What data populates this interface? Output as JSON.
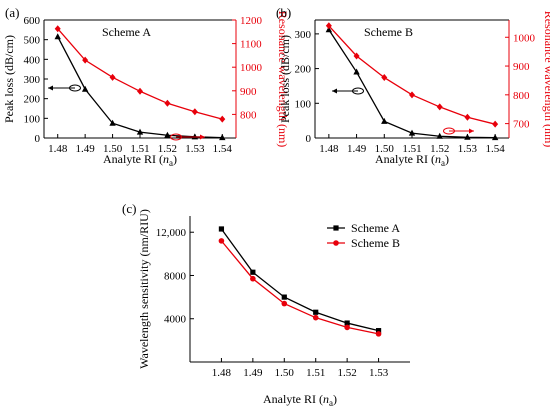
{
  "chart_data": [
    {
      "type": "line",
      "panel_label": "(a)",
      "title": "Scheme A",
      "xlabel": "Analyte RI",
      "xlabel_var": "n",
      "xlabel_sub": "a",
      "ylabel": "Peak loss (dB/cm)",
      "y2label": "Resonance wavelength (nm)",
      "x": [
        1.48,
        1.49,
        1.5,
        1.51,
        1.52,
        1.53,
        1.54
      ],
      "xlim": [
        1.475,
        1.545
      ],
      "ylim": [
        0,
        600
      ],
      "y2lim": [
        700,
        1200
      ],
      "xticks": [
        "1.48",
        "1.49",
        "1.50",
        "1.51",
        "1.52",
        "1.53",
        "1.54"
      ],
      "yticks": [
        "0",
        "100",
        "200",
        "300",
        "400",
        "500",
        "600"
      ],
      "y2ticks": [
        "800",
        "900",
        "1000",
        "1100",
        "1200"
      ],
      "series": [
        {
          "axis": "left",
          "color": "#000000",
          "marker": "triangle",
          "values": [
            515,
            248,
            75,
            30,
            14,
            6,
            2
          ]
        },
        {
          "axis": "right",
          "color": "#e8000b",
          "marker": "diamond",
          "values": [
            1163,
            1030,
            957,
            898,
            847,
            811,
            780
          ]
        }
      ]
    },
    {
      "type": "line",
      "panel_label": "(b)",
      "title": "Scheme B",
      "xlabel": "Analyte RI",
      "xlabel_var": "n",
      "xlabel_sub": "a",
      "ylabel": "Peak loss (dB/cm)",
      "y2label": "Resonance wavelength (nm)",
      "x": [
        1.48,
        1.49,
        1.5,
        1.51,
        1.52,
        1.53,
        1.54
      ],
      "xlim": [
        1.475,
        1.545
      ],
      "ylim": [
        0,
        340
      ],
      "y2lim": [
        650,
        1060
      ],
      "xticks": [
        "1.48",
        "1.49",
        "1.50",
        "1.51",
        "1.52",
        "1.53",
        "1.54"
      ],
      "yticks": [
        "0",
        "100",
        "200",
        "300"
      ],
      "y2ticks": [
        "700",
        "800",
        "900",
        "1000"
      ],
      "series": [
        {
          "axis": "left",
          "color": "#000000",
          "marker": "triangle",
          "values": [
            312,
            190,
            48,
            14,
            5,
            2,
            1
          ]
        },
        {
          "axis": "right",
          "color": "#e8000b",
          "marker": "diamond",
          "values": [
            1040,
            935,
            860,
            800,
            758,
            722,
            698
          ]
        }
      ]
    },
    {
      "type": "line",
      "panel_label": "(c)",
      "title": "",
      "xlabel": "Analyte RI",
      "xlabel_var": "n",
      "xlabel_sub": "a",
      "ylabel": "Wavelength sensitivity (nm/RIU)",
      "x": [
        1.48,
        1.49,
        1.5,
        1.51,
        1.52,
        1.53
      ],
      "xlim": [
        1.47,
        1.54
      ],
      "ylim": [
        0,
        13500
      ],
      "xticks": [
        "1.48",
        "1.49",
        "1.50",
        "1.51",
        "1.52",
        "1.53"
      ],
      "yticks": [
        "4000",
        "8000",
        "12,000"
      ],
      "ytick_values": [
        4000,
        8000,
        12000
      ],
      "legend_position": "top-right",
      "series": [
        {
          "name": "Scheme A",
          "color": "#000000",
          "marker": "square",
          "values": [
            12300,
            8300,
            6000,
            4600,
            3600,
            2900
          ]
        },
        {
          "name": "Scheme B",
          "color": "#e8000b",
          "marker": "circle",
          "values": [
            11200,
            7700,
            5400,
            4100,
            3200,
            2600
          ]
        }
      ]
    }
  ]
}
